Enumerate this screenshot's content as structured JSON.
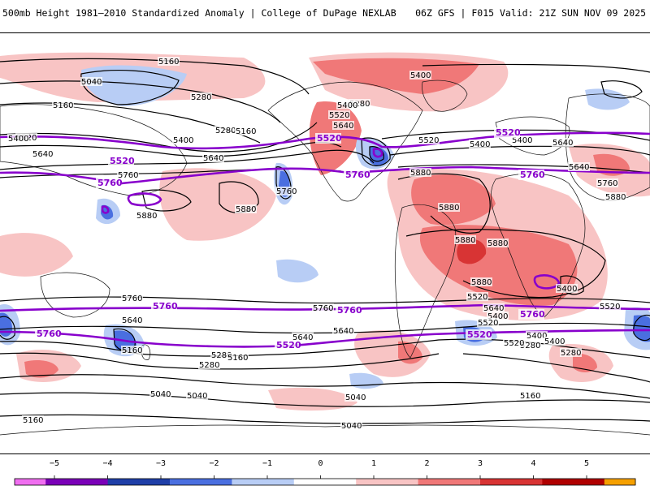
{
  "header": {
    "title": "500mb Height 1981–2010 Standardized Anomaly | College of DuPage NEXLAB",
    "run_info": "06Z GFS | F015 Valid: 21Z SUN NOV 09 2025"
  },
  "colors": {
    "neg5": "#f06ef0",
    "neg4": "#7a00b8",
    "neg3": "#1f3fa8",
    "neg2": "#4a6fe0",
    "neg1": "#b8cdf5",
    "zero": "#ffffff",
    "pos1": "#f8c4c4",
    "pos2": "#f07878",
    "pos3": "#d83434",
    "pos4": "#b00000",
    "pos5": "#f5a000",
    "highlight_contour": "#8800cc",
    "contour": "#000000",
    "coast": "#111111"
  },
  "colorbar": {
    "labels": [
      "−5",
      "−4",
      "−3",
      "−2",
      "−1",
      "0",
      "1",
      "2",
      "3",
      "4",
      "5"
    ]
  },
  "contour_labels": [
    {
      "text": "5160"
    },
    {
      "text": "5040"
    },
    {
      "text": "5280"
    },
    {
      "text": "5160"
    },
    {
      "text": "5280"
    },
    {
      "text": "5160"
    },
    {
      "text": "5400"
    },
    {
      "text": "5520"
    },
    {
      "text": "5400"
    },
    {
      "text": "5640"
    },
    {
      "text": "5640"
    },
    {
      "text": "5760"
    },
    {
      "text": "5880"
    },
    {
      "text": "5880"
    },
    {
      "text": "5760"
    },
    {
      "text": "5520"
    },
    {
      "text": "5400"
    },
    {
      "text": "5400"
    },
    {
      "text": "5640"
    },
    {
      "text": "5280"
    },
    {
      "text": "5400"
    },
    {
      "text": "5520"
    },
    {
      "text": "5400"
    },
    {
      "text": "5640"
    },
    {
      "text": "5880"
    },
    {
      "text": "5880"
    },
    {
      "text": "5880"
    },
    {
      "text": "5880"
    },
    {
      "text": "5880"
    },
    {
      "text": "5760"
    },
    {
      "text": "5640"
    },
    {
      "text": "5520"
    },
    {
      "text": "5640"
    },
    {
      "text": "5400"
    },
    {
      "text": "5520"
    },
    {
      "text": "5400"
    },
    {
      "text": "5280"
    },
    {
      "text": "5160"
    },
    {
      "text": "5040"
    },
    {
      "text": "5040"
    },
    {
      "text": "5160"
    },
    {
      "text": "5280"
    },
    {
      "text": "5640"
    },
    {
      "text": "5760"
    },
    {
      "text": "5640"
    },
    {
      "text": "5280"
    },
    {
      "text": "5160"
    },
    {
      "text": "5040"
    },
    {
      "text": "5040"
    },
    {
      "text": "5400"
    },
    {
      "text": "5520"
    },
    {
      "text": "5640"
    },
    {
      "text": "5760"
    },
    {
      "text": "5880"
    },
    {
      "text": "5520"
    },
    {
      "text": "5400"
    },
    {
      "text": "5280"
    },
    {
      "text": "5160"
    }
  ],
  "highlight_labels": [
    {
      "text": "5520"
    },
    {
      "text": "5520"
    },
    {
      "text": "5520"
    },
    {
      "text": "5760"
    },
    {
      "text": "5760"
    },
    {
      "text": "5760"
    },
    {
      "text": "5760"
    },
    {
      "text": "5760"
    },
    {
      "text": "5760"
    },
    {
      "text": "5760"
    },
    {
      "text": "5520"
    },
    {
      "text": "5520"
    },
    {
      "text": "5520"
    }
  ]
}
